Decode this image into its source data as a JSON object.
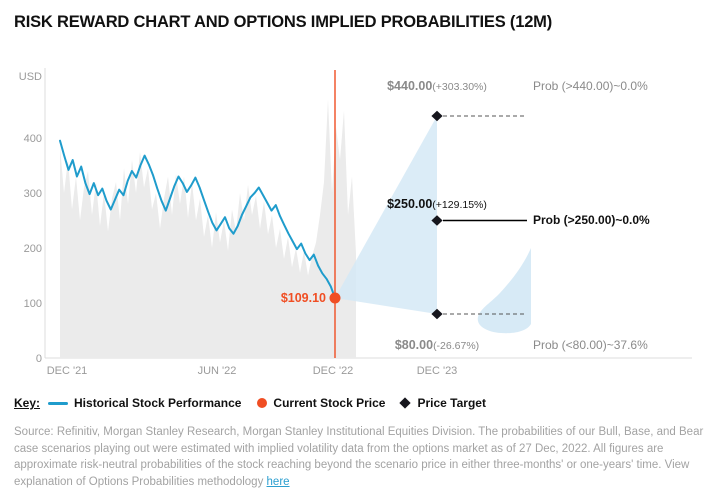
{
  "title": "RISK REWARD CHART AND OPTIONS IMPLIED PROBABILITIES (12M)",
  "chart_data": {
    "type": "line",
    "y_axis": {
      "label": "USD",
      "ticks": [
        0,
        100,
        200,
        300,
        400
      ],
      "range": [
        0,
        480
      ]
    },
    "x_axis": {
      "ticks": [
        "DEC '21",
        "JUN '22",
        "DEC '22",
        "DEC '23"
      ]
    },
    "colors": {
      "history": "#1f9ccc",
      "current": "#f04e23",
      "fan": "#d5e9f6",
      "silhouette": "#ebebeb",
      "target": "#16161d",
      "muted": "#8a8a8a"
    },
    "history": {
      "name": "Historical Stock Performance",
      "values": [
        395,
        368,
        342,
        360,
        330,
        348,
        318,
        298,
        318,
        296,
        308,
        286,
        270,
        288,
        306,
        296,
        322,
        340,
        328,
        350,
        368,
        352,
        332,
        308,
        286,
        268,
        290,
        312,
        330,
        318,
        302,
        314,
        328,
        310,
        288,
        266,
        246,
        232,
        244,
        256,
        236,
        226,
        240,
        260,
        276,
        292,
        300,
        310,
        296,
        282,
        268,
        278,
        258,
        242,
        226,
        212,
        198,
        208,
        190,
        178,
        188,
        168,
        154,
        144,
        130,
        109.1
      ]
    },
    "range_silhouette": {
      "name": "Price Range Silhouette",
      "values": [
        385,
        300,
        360,
        270,
        330,
        250,
        310,
        340,
        260,
        320,
        240,
        300,
        230,
        290,
        320,
        250,
        345,
        280,
        360,
        300,
        375,
        310,
        345,
        270,
        300,
        235,
        290,
        330,
        260,
        335,
        280,
        330,
        255,
        320,
        250,
        290,
        220,
        260,
        200,
        265,
        210,
        250,
        195,
        270,
        230,
        300,
        250,
        315,
        260,
        295,
        235,
        285,
        225,
        260,
        200,
        235,
        180,
        220,
        165,
        200,
        155,
        195,
        150,
        185,
        210,
        260,
        320,
        470,
        300,
        420,
        360,
        450,
        260,
        330,
        190
      ]
    },
    "current_price": {
      "value": 109.1,
      "label": "$109.10",
      "date": "DEC '22"
    },
    "targets": [
      {
        "price": 440,
        "price_label": "$440.00",
        "pct_label": "(+303.30%)",
        "prob_label": "Prob (>440.00)~0.0%",
        "line_style": "dashed",
        "muted": true
      },
      {
        "price": 250,
        "price_label": "$250.00",
        "pct_label": "(+129.15%)",
        "prob_label": "Prob (>250.00)~0.0%",
        "line_style": "solid",
        "muted": false
      },
      {
        "price": 80,
        "price_label": "$80.00",
        "pct_label": "(-26.67%)",
        "prob_label": "Prob (<80.00)~37.6%",
        "line_style": "dashed",
        "muted": true
      }
    ]
  },
  "key": {
    "label": "Key:",
    "items": [
      {
        "glyph": "line",
        "label": "Historical Stock Performance"
      },
      {
        "glyph": "dot",
        "label": "Current Stock Price"
      },
      {
        "glyph": "diamond",
        "label": "Price Target"
      }
    ]
  },
  "footer": {
    "text": "Source: Refinitiv, Morgan Stanley Research, Morgan Stanley Institutional Equities Division. The probabilities of our Bull, Base, and Bear case scenarios playing out were estimated with implied volatility data from the options market as of 27 Dec, 2022. All figures are approximate risk-neutral probabilities of the stock reaching beyond the scenario price in either three-months' or one-years' time. View explanation of Options Probabilities methodology",
    "link": "here"
  }
}
